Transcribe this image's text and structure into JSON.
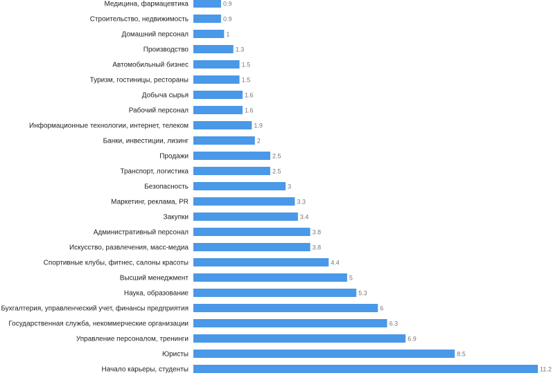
{
  "chart_data": {
    "type": "bar",
    "orientation": "horizontal",
    "bar_color": "#4a98e8",
    "label_color": "#222222",
    "value_label_color": "#777777",
    "categories": [
      "Медицина, фармацевтика",
      "Строительство, недвижимость",
      "Домашний персонал",
      "Производство",
      "Автомобильный бизнес",
      "Туризм, гостиницы, рестораны",
      "Добыча сырья",
      "Рабочий персонал",
      "Информационные технологии, интернет, телеком",
      "Банки, инвестиции, лизинг",
      "Продажи",
      "Транспорт, логистика",
      "Безопасность",
      "Маркетинг, реклама, PR",
      "Закупки",
      "Административный персонал",
      "Искусство, развлечения, масс-медиа",
      "Спортивные клубы, фитнес, салоны красоты",
      "Высший менеджмент",
      "Наука, образование",
      "Бухгалтерия, управленческий учет, финансы предприятия",
      "Государственная служба, некоммерческие организации",
      "Управление персоналом, тренинги",
      "Юристы",
      "Начало карьеры, студенты"
    ],
    "values": [
      0.9,
      0.9,
      1,
      1.3,
      1.5,
      1.5,
      1.6,
      1.6,
      1.9,
      2,
      2.5,
      2.5,
      3,
      3.3,
      3.4,
      3.8,
      3.8,
      4.4,
      5,
      5.3,
      6,
      6.3,
      6.9,
      8.5,
      11.2
    ],
    "value_labels": [
      "0.9",
      "0.9",
      "1",
      "1.3",
      "1.5",
      "1.5",
      "1.6",
      "1.6",
      "1.9",
      "2",
      "2.5",
      "2.5",
      "3",
      "3.3",
      "3.4",
      "3.8",
      "3.8",
      "4.4",
      "5",
      "5.3",
      "6",
      "6.3",
      "6.9",
      "8.5",
      "11.2"
    ],
    "xlim": [
      0,
      11.2
    ],
    "grid": false,
    "legend": "none"
  }
}
